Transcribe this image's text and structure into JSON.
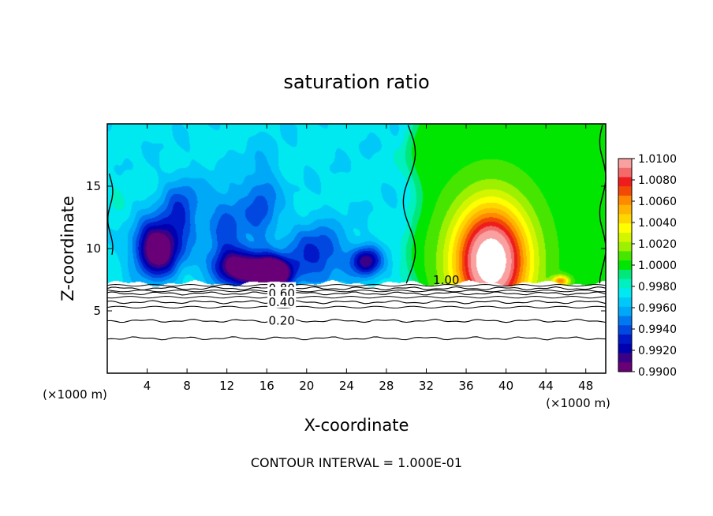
{
  "chart_data": {
    "type": "heatmap",
    "title": "saturation ratio",
    "xlabel": "X-coordinate",
    "ylabel": "Z-coordinate",
    "x_unit_left": "(×1000 m)",
    "x_unit_right": "(×1000 m)",
    "footer": "CONTOUR INTERVAL = 1.000E-01",
    "xlim": [
      0,
      50
    ],
    "ylim": [
      0,
      20
    ],
    "x_ticks": [
      4,
      8,
      12,
      16,
      20,
      24,
      28,
      32,
      36,
      40,
      44,
      48
    ],
    "y_ticks": [
      5,
      10,
      15
    ],
    "colorbar": {
      "levels": [
        "1.0100",
        "1.0080",
        "1.0060",
        "1.0040",
        "1.0020",
        "1.0000",
        "0.9980",
        "0.9960",
        "0.9940",
        "0.9920",
        "0.9900"
      ],
      "colors": [
        "#f9a0a0",
        "#f46a6a",
        "#ee1c1c",
        "#f24a06",
        "#ff8a00",
        "#ffb400",
        "#ffd700",
        "#ffff00",
        "#d4f500",
        "#9cf000",
        "#46e600",
        "#00e600",
        "#00e87a",
        "#00f0c0",
        "#00e8f0",
        "#00c8f8",
        "#00a8f8",
        "#0078f0",
        "#0048e0",
        "#0018c8",
        "#0000b0",
        "#3a0088",
        "#6a0078"
      ]
    },
    "contour_lines": [
      {
        "label": "0.80",
        "z": 6.8
      },
      {
        "label": "0.60",
        "z": 6.4
      },
      {
        "label": "0.40",
        "z": 5.7
      },
      {
        "label": "0.20",
        "z": 4.2
      },
      {
        "label": "",
        "z": 2.8
      }
    ],
    "contour_label_saturated": "1.00",
    "saturation_field": {
      "description_free": true,
      "cloud_base_z": 7.2,
      "zmax": 19.9,
      "anomalies": [
        {
          "x": 5.0,
          "z": 10.0,
          "sx": 2.2,
          "sz": 2.2,
          "amp": -0.0085
        },
        {
          "x": 7.5,
          "z": 13.0,
          "sx": 2.0,
          "sz": 2.6,
          "amp": -0.0035
        },
        {
          "x": 13.0,
          "z": 8.5,
          "sx": 2.6,
          "sz": 1.5,
          "amp": -0.007
        },
        {
          "x": 16.5,
          "z": 8.0,
          "sx": 2.0,
          "sz": 1.2,
          "amp": -0.011
        },
        {
          "x": 12.0,
          "z": 12.0,
          "sx": 2.0,
          "sz": 3.0,
          "amp": -0.003
        },
        {
          "x": 15.5,
          "z": 13.5,
          "sx": 1.8,
          "sz": 3.5,
          "amp": -0.003
        },
        {
          "x": 21.0,
          "z": 9.5,
          "sx": 3.0,
          "sz": 2.5,
          "amp": -0.004
        },
        {
          "x": 26.0,
          "z": 9.0,
          "sx": 1.5,
          "sz": 1.2,
          "amp": -0.006
        },
        {
          "x": 1.0,
          "z": 13.5,
          "sx": 1.2,
          "sz": 3.0,
          "amp": 0.0004
        },
        {
          "x": 38.5,
          "z": 9.0,
          "sx": 3.6,
          "sz": 4.3,
          "amp": 0.0125
        },
        {
          "x": 45.5,
          "z": 7.4,
          "sx": 0.8,
          "sz": 0.4,
          "amp": 0.006
        }
      ],
      "base_left": 0.9972,
      "base_right": 1.0001,
      "transition_x": 30.5
    }
  }
}
